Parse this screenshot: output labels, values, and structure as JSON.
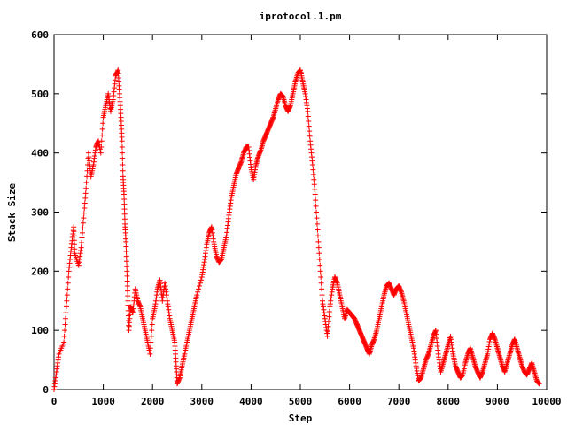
{
  "chart_data": {
    "type": "scatter",
    "title": "iprotocol.1.pm",
    "xlabel": "Step",
    "ylabel": "Stack Size",
    "xlim": [
      0,
      10000
    ],
    "ylim": [
      0,
      600
    ],
    "xticks": [
      0,
      1000,
      2000,
      3000,
      4000,
      5000,
      6000,
      7000,
      8000,
      9000,
      10000
    ],
    "yticks": [
      0,
      100,
      200,
      300,
      400,
      500,
      600
    ],
    "grid": false,
    "legend": "none",
    "marker": "plus",
    "series_color": "#ff0000",
    "series": [
      {
        "points": [
          [
            0,
            0
          ],
          [
            50,
            30
          ],
          [
            100,
            60
          ],
          [
            200,
            80
          ],
          [
            250,
            140
          ],
          [
            300,
            200
          ],
          [
            350,
            240
          ],
          [
            400,
            275
          ],
          [
            420,
            230
          ],
          [
            500,
            210
          ],
          [
            550,
            240
          ],
          [
            600,
            290
          ],
          [
            650,
            340
          ],
          [
            700,
            400
          ],
          [
            750,
            360
          ],
          [
            800,
            380
          ],
          [
            850,
            410
          ],
          [
            900,
            420
          ],
          [
            950,
            400
          ],
          [
            1000,
            460
          ],
          [
            1050,
            480
          ],
          [
            1100,
            500
          ],
          [
            1150,
            470
          ],
          [
            1200,
            490
          ],
          [
            1250,
            530
          ],
          [
            1300,
            540
          ],
          [
            1330,
            500
          ],
          [
            1360,
            460
          ],
          [
            1380,
            420
          ],
          [
            1400,
            360
          ],
          [
            1420,
            330
          ],
          [
            1440,
            280
          ],
          [
            1460,
            250
          ],
          [
            1480,
            200
          ],
          [
            1500,
            150
          ],
          [
            1520,
            100
          ],
          [
            1550,
            140
          ],
          [
            1600,
            130
          ],
          [
            1650,
            170
          ],
          [
            1700,
            150
          ],
          [
            1750,
            140
          ],
          [
            1800,
            120
          ],
          [
            1850,
            100
          ],
          [
            1900,
            80
          ],
          [
            1950,
            60
          ],
          [
            2000,
            120
          ],
          [
            2050,
            140
          ],
          [
            2100,
            170
          ],
          [
            2150,
            185
          ],
          [
            2200,
            150
          ],
          [
            2250,
            180
          ],
          [
            2300,
            150
          ],
          [
            2350,
            120
          ],
          [
            2400,
            100
          ],
          [
            2450,
            80
          ],
          [
            2480,
            40
          ],
          [
            2500,
            10
          ],
          [
            2550,
            20
          ],
          [
            2600,
            40
          ],
          [
            2650,
            60
          ],
          [
            2700,
            80
          ],
          [
            2750,
            100
          ],
          [
            2800,
            120
          ],
          [
            2850,
            140
          ],
          [
            2900,
            160
          ],
          [
            3000,
            190
          ],
          [
            3050,
            215
          ],
          [
            3100,
            245
          ],
          [
            3150,
            265
          ],
          [
            3200,
            275
          ],
          [
            3250,
            245
          ],
          [
            3300,
            225
          ],
          [
            3350,
            215
          ],
          [
            3400,
            220
          ],
          [
            3450,
            240
          ],
          [
            3500,
            260
          ],
          [
            3550,
            295
          ],
          [
            3600,
            325
          ],
          [
            3650,
            345
          ],
          [
            3700,
            365
          ],
          [
            3750,
            375
          ],
          [
            3800,
            385
          ],
          [
            3850,
            400
          ],
          [
            3900,
            410
          ],
          [
            3950,
            410
          ],
          [
            4000,
            375
          ],
          [
            4050,
            355
          ],
          [
            4100,
            380
          ],
          [
            4150,
            395
          ],
          [
            4200,
            405
          ],
          [
            4250,
            420
          ],
          [
            4300,
            430
          ],
          [
            4350,
            440
          ],
          [
            4400,
            450
          ],
          [
            4450,
            460
          ],
          [
            4500,
            475
          ],
          [
            4550,
            490
          ],
          [
            4600,
            500
          ],
          [
            4650,
            495
          ],
          [
            4700,
            480
          ],
          [
            4750,
            470
          ],
          [
            4800,
            480
          ],
          [
            4850,
            500
          ],
          [
            4900,
            520
          ],
          [
            4950,
            535
          ],
          [
            5000,
            540
          ],
          [
            5050,
            520
          ],
          [
            5100,
            500
          ],
          [
            5150,
            470
          ],
          [
            5200,
            420
          ],
          [
            5250,
            380
          ],
          [
            5300,
            330
          ],
          [
            5350,
            270
          ],
          [
            5400,
            210
          ],
          [
            5450,
            150
          ],
          [
            5500,
            120
          ],
          [
            5550,
            90
          ],
          [
            5600,
            140
          ],
          [
            5650,
            170
          ],
          [
            5700,
            190
          ],
          [
            5750,
            180
          ],
          [
            5800,
            160
          ],
          [
            5850,
            140
          ],
          [
            5900,
            120
          ],
          [
            5950,
            135
          ],
          [
            6000,
            130
          ],
          [
            6050,
            125
          ],
          [
            6100,
            120
          ],
          [
            6150,
            110
          ],
          [
            6200,
            100
          ],
          [
            6250,
            90
          ],
          [
            6300,
            80
          ],
          [
            6350,
            70
          ],
          [
            6400,
            60
          ],
          [
            6450,
            75
          ],
          [
            6500,
            85
          ],
          [
            6550,
            100
          ],
          [
            6600,
            120
          ],
          [
            6650,
            140
          ],
          [
            6700,
            160
          ],
          [
            6750,
            175
          ],
          [
            6800,
            180
          ],
          [
            6850,
            170
          ],
          [
            6900,
            160
          ],
          [
            6950,
            170
          ],
          [
            7000,
            175
          ],
          [
            7050,
            165
          ],
          [
            7100,
            150
          ],
          [
            7150,
            130
          ],
          [
            7200,
            110
          ],
          [
            7250,
            90
          ],
          [
            7300,
            70
          ],
          [
            7350,
            40
          ],
          [
            7400,
            15
          ],
          [
            7450,
            20
          ],
          [
            7500,
            35
          ],
          [
            7550,
            50
          ],
          [
            7600,
            60
          ],
          [
            7650,
            75
          ],
          [
            7700,
            90
          ],
          [
            7750,
            100
          ],
          [
            7800,
            60
          ],
          [
            7850,
            30
          ],
          [
            7900,
            45
          ],
          [
            7950,
            60
          ],
          [
            8000,
            75
          ],
          [
            8050,
            90
          ],
          [
            8100,
            60
          ],
          [
            8150,
            40
          ],
          [
            8200,
            30
          ],
          [
            8250,
            20
          ],
          [
            8300,
            25
          ],
          [
            8350,
            45
          ],
          [
            8400,
            60
          ],
          [
            8450,
            70
          ],
          [
            8500,
            55
          ],
          [
            8550,
            40
          ],
          [
            8600,
            30
          ],
          [
            8650,
            20
          ],
          [
            8700,
            30
          ],
          [
            8750,
            45
          ],
          [
            8800,
            60
          ],
          [
            8850,
            85
          ],
          [
            8900,
            95
          ],
          [
            8950,
            85
          ],
          [
            9000,
            70
          ],
          [
            9050,
            55
          ],
          [
            9100,
            40
          ],
          [
            9150,
            30
          ],
          [
            9200,
            45
          ],
          [
            9250,
            60
          ],
          [
            9300,
            75
          ],
          [
            9350,
            85
          ],
          [
            9400,
            70
          ],
          [
            9450,
            55
          ],
          [
            9500,
            40
          ],
          [
            9550,
            30
          ],
          [
            9600,
            25
          ],
          [
            9650,
            35
          ],
          [
            9700,
            45
          ],
          [
            9750,
            30
          ],
          [
            9800,
            15
          ],
          [
            9850,
            10
          ]
        ]
      }
    ]
  }
}
